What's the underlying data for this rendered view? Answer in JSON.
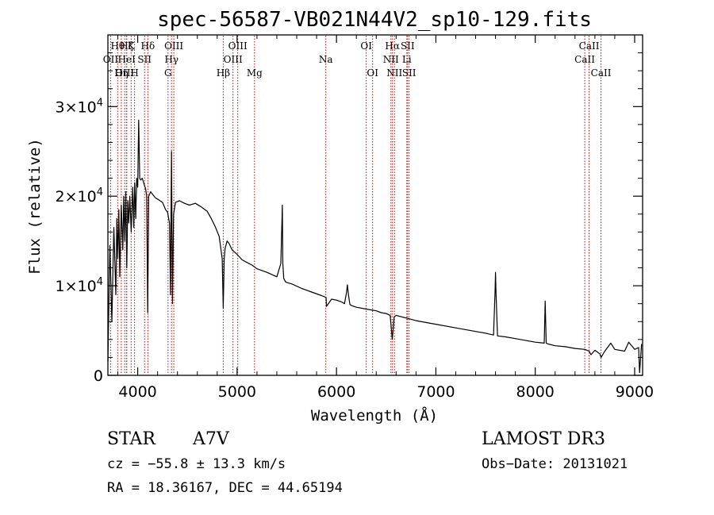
{
  "chart_data": {
    "type": "line",
    "title": "spec-56587-VB021N44V2_sp10-129.fits",
    "xlabel": "Wavelength (Å)",
    "ylabel": "Flux (relative)",
    "xlim": [
      3700,
      9080
    ],
    "ylim": [
      0,
      38000
    ],
    "x_ticks": [
      4000,
      5000,
      6000,
      7000,
      8000,
      9000
    ],
    "x_tick_labels": [
      "4000",
      "5000",
      "6000",
      "7000",
      "8000",
      "9000"
    ],
    "y_ticks": [
      0,
      10000,
      20000,
      30000
    ],
    "y_tick_labels": [
      {
        "value": 0,
        "mantissa": "0",
        "exponent": ""
      },
      {
        "value": 10000,
        "mantissa": "1×10",
        "exponent": "4"
      },
      {
        "value": 20000,
        "mantissa": "2×10",
        "exponent": "4"
      },
      {
        "value": 30000,
        "mantissa": "3×10",
        "exponent": "4"
      }
    ],
    "series": [
      {
        "name": "flux",
        "x": [
          3700,
          3720,
          3740,
          3760,
          3780,
          3790,
          3800,
          3810,
          3820,
          3835,
          3850,
          3860,
          3870,
          3880,
          3890,
          3900,
          3910,
          3920,
          3935,
          3950,
          3960,
          3970,
          3980,
          3990,
          4000,
          4010,
          4020,
          4030,
          4045,
          4060,
          4080,
          4090,
          4101,
          4110,
          4130,
          4150,
          4180,
          4210,
          4250,
          4280,
          4300,
          4320,
          4330,
          4340,
          4350,
          4361,
          4380,
          4420,
          4470,
          4520,
          4580,
          4640,
          4700,
          4740,
          4780,
          4820,
          4850,
          4861,
          4870,
          4880,
          4900,
          4920,
          4950,
          5000,
          5050,
          5100,
          5150,
          5200,
          5250,
          5300,
          5360,
          5400,
          5440,
          5455,
          5460,
          5470,
          5490,
          5550,
          5650,
          5750,
          5850,
          5895,
          5900,
          5950,
          6000,
          6050,
          6080,
          6100,
          6110,
          6120,
          6135,
          6150,
          6200,
          6300,
          6400,
          6450,
          6500,
          6540,
          6562,
          6580,
          6600,
          6700,
          6800,
          7000,
          7200,
          7400,
          7500,
          7580,
          7595,
          7600,
          7605,
          7620,
          7700,
          7800,
          8000,
          8090,
          8100,
          8110,
          8130,
          8200,
          8300,
          8400,
          8500,
          8542,
          8560,
          8600,
          8650,
          8662,
          8700,
          8760,
          8800,
          8900,
          8940,
          9000,
          9040,
          9050,
          9070
        ],
        "values": [
          1500,
          14500,
          6000,
          16500,
          9000,
          17500,
          13000,
          18500,
          11000,
          19000,
          14000,
          20000,
          15000,
          20500,
          12000,
          19500,
          17000,
          20000,
          16000,
          21000,
          16500,
          21500,
          17500,
          22000,
          21000,
          28500,
          22000,
          21800,
          22000,
          21500,
          20800,
          20000,
          7000,
          20000,
          20500,
          20200,
          19800,
          19600,
          19300,
          18500,
          18200,
          17000,
          9000,
          25000,
          8000,
          18000,
          19300,
          19500,
          19200,
          19000,
          19200,
          18800,
          18300,
          17500,
          16600,
          15500,
          13000,
          7500,
          13000,
          14200,
          15000,
          14700,
          14000,
          13500,
          12900,
          12600,
          12300,
          11900,
          11700,
          11500,
          11200,
          11000,
          12500,
          19000,
          12500,
          10800,
          10400,
          10200,
          9700,
          9300,
          8900,
          8700,
          7700,
          8500,
          8400,
          8200,
          8000,
          9200,
          10100,
          9000,
          7900,
          7800,
          7600,
          7400,
          7200,
          7000,
          6900,
          6700,
          4000,
          6500,
          6700,
          6400,
          6100,
          5700,
          5300,
          4900,
          4700,
          4500,
          9300,
          11500,
          9300,
          4400,
          4300,
          4100,
          3700,
          3600,
          8300,
          3600,
          3500,
          3300,
          3200,
          3000,
          2900,
          2700,
          2300,
          2800,
          2400,
          2000,
          2700,
          3600,
          2900,
          2700,
          3700,
          2900,
          3100,
          300,
          3500
        ]
      }
    ],
    "spectral_lines": [
      {
        "label": "Hθ",
        "wavelength": 3798,
        "row": 1
      },
      {
        "label": "OII",
        "wavelength": 3727,
        "row": 2
      },
      {
        "label": "OIII",
        "wavelength": 3869,
        "row": 3
      },
      {
        "label": "Hη",
        "wavelength": 3835,
        "row": 3
      },
      {
        "label": "Hζ",
        "wavelength": 3889,
        "row": 1
      },
      {
        "label": "HeI",
        "wavelength": 3889,
        "row": 2
      },
      {
        "label": "K",
        "wavelength": 3934,
        "row": 1
      },
      {
        "label": "SII",
        "wavelength": 4069,
        "row": 2
      },
      {
        "label": "H",
        "wavelength": 3968,
        "row": 3
      },
      {
        "label": "Hδ",
        "wavelength": 4102,
        "row": 1
      },
      {
        "label": "OIII",
        "wavelength": 4363,
        "row": 1
      },
      {
        "label": "Hγ",
        "wavelength": 4340,
        "row": 2
      },
      {
        "label": "G",
        "wavelength": 4305,
        "row": 3
      },
      {
        "label": "Hβ",
        "wavelength": 4861,
        "row": 3
      },
      {
        "label": "OIII",
        "wavelength": 5007,
        "row": 1
      },
      {
        "label": "OIII",
        "wavelength": 4959,
        "row": 2
      },
      {
        "label": "Mg",
        "wavelength": 5175,
        "row": 3
      },
      {
        "label": "Na",
        "wavelength": 5893,
        "row": 2
      },
      {
        "label": "OI",
        "wavelength": 6300,
        "row": 1
      },
      {
        "label": "OI",
        "wavelength": 6364,
        "row": 3
      },
      {
        "label": "Hα",
        "wavelength": 6563,
        "row": 1
      },
      {
        "label": "SII",
        "wavelength": 6716,
        "row": 1
      },
      {
        "label": "NII",
        "wavelength": 6548,
        "row": 2
      },
      {
        "label": "Li",
        "wavelength": 6708,
        "row": 2
      },
      {
        "label": "NII",
        "wavelength": 6583,
        "row": 3
      },
      {
        "label": "SII",
        "wavelength": 6731,
        "row": 3
      },
      {
        "label": "CaII",
        "wavelength": 8542,
        "row": 1
      },
      {
        "label": "CaII",
        "wavelength": 8498,
        "row": 2
      },
      {
        "label": "CaII",
        "wavelength": 8662,
        "row": 3
      }
    ]
  },
  "info": {
    "object_class": "STAR",
    "subclass": "A7V",
    "survey": "LAMOST DR3",
    "redshift_text": "cz = −55.8 ± 13.3 km/s",
    "obs_date_text": "Obs−Date: 20131021",
    "coords_text": "RA =  18.36167, DEC =  44.65194"
  },
  "colors": {
    "axes": "#000000",
    "spectrum": "#000000",
    "line_markers": "#cc0000"
  }
}
